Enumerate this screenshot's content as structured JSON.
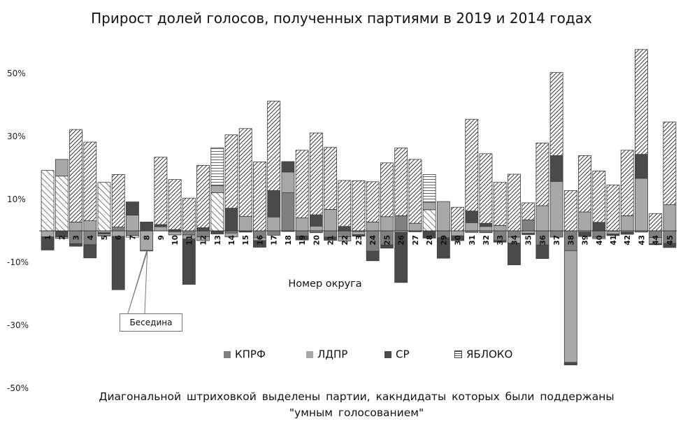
{
  "chart_data": {
    "type": "bar",
    "title": "Прирост долей голосов, полученных партиями в 2019 и 2014 годах",
    "xlabel": "Номер округа",
    "ylabel": "",
    "caption": [
      "Диагональной штриховкой выделены партии, какндидаты которых были поддержаны",
      "\"умным голосованием\""
    ],
    "annotation": "Беседина",
    "annotation_category": "8",
    "ylim": [
      -50,
      60
    ],
    "yticks": [
      50,
      30,
      10,
      -10,
      -30,
      -50
    ],
    "ytick_labels": [
      "50%",
      "30%",
      "10%",
      "-10%",
      "-30%",
      "-50%"
    ],
    "stacked": true,
    "hatched_marks_supported_by_smart_voting": true,
    "categories": [
      "1",
      "2",
      "3",
      "4",
      "5",
      "6",
      "7",
      "8",
      "9",
      "10",
      "11",
      "12",
      "13",
      "14",
      "15",
      "16",
      "17",
      "18",
      "19",
      "20",
      "21",
      "22",
      "23",
      "24",
      "25",
      "26",
      "27",
      "28",
      "29",
      "30",
      "31",
      "32",
      "33",
      "34",
      "35",
      "36",
      "37",
      "38",
      "39",
      "40",
      "41",
      "42",
      "43",
      "44",
      "45"
    ],
    "series": [
      {
        "name": "КПРФ",
        "color": "#808080",
        "values": [
          19.2,
          17.4,
          -4.1,
          -4.4,
          15.4,
          1.2,
          -1.5,
          0,
          0,
          -0.3,
          -1.3,
          -1.9,
          12.1,
          -0.7,
          0,
          -2.2,
          -1.4,
          12.1,
          -1.7,
          -0.6,
          -2.0,
          -1.9,
          -0.2,
          -6.5,
          -4.5,
          4.8,
          0,
          6.7,
          -2.2,
          0,
          -0.5,
          -0.6,
          -3.1,
          -2.0,
          3.5,
          -4.5,
          -2.0,
          -6.3,
          -0.5,
          -2.0,
          -0.1,
          -0.5,
          -0.4,
          -2.1,
          -4.0
        ]
      },
      {
        "name": "ЛДПР",
        "color": "#a8a8a8",
        "values": [
          -1.9,
          5.3,
          2.8,
          3.2,
          -0.6,
          -1.8,
          5.0,
          -6.2,
          1.3,
          -1.0,
          -1.3,
          -1.2,
          2.3,
          -1.2,
          4.6,
          -0.9,
          4.4,
          6.6,
          4.1,
          1.5,
          6.8,
          -1.3,
          -1.0,
          2.8,
          4.5,
          -0.5,
          2.4,
          2.4,
          9.3,
          -1.6,
          2.6,
          1.4,
          1.7,
          -1.9,
          -0.8,
          8.0,
          15.7,
          -35.5,
          6.0,
          -0.5,
          -0.9,
          4.8,
          16.7,
          -2.0,
          8.3
        ]
      },
      {
        "name": "СР",
        "color": "#4a4a4a",
        "values": [
          -3.9,
          -2.0,
          -0.8,
          -4.2,
          -0.5,
          -16.9,
          4.2,
          2.8,
          0.7,
          0.4,
          -14.4,
          1.0,
          -1.0,
          7.2,
          -0.4,
          -2.1,
          8.4,
          3.3,
          -1.2,
          3.6,
          -1.0,
          1.4,
          -0.5,
          -3.0,
          -1.0,
          -15.9,
          -0.3,
          -2.3,
          -6.2,
          -1.5,
          3.7,
          1.0,
          -0.5,
          -6.9,
          -0.4,
          -4.3,
          8.2,
          -0.8,
          -1.3,
          2.7,
          -0.5,
          -0.6,
          7.6,
          -0.3,
          -1.3
        ]
      },
      {
        "name": "ЯБЛОКО",
        "color": "#ffffff",
        "values": [
          -0.3,
          -0.4,
          29.4,
          25.0,
          -0.6,
          16.7,
          -0.5,
          -0.2,
          21.4,
          15.9,
          10.4,
          19.8,
          12.0,
          23.3,
          27.9,
          21.9,
          28.4,
          -0.2,
          21.5,
          26.0,
          19.7,
          14.6,
          15.9,
          12.8,
          17.1,
          21.5,
          20.3,
          8.8,
          -0.3,
          7.5,
          29.1,
          22.1,
          13.7,
          18.0,
          5.4,
          19.9,
          26.4,
          12.8,
          17.9,
          16.3,
          14.6,
          20.8,
          33.3,
          5.5,
          26.3
        ]
      }
    ],
    "hatched": {
      "КПРФ": [
        "1",
        "2",
        "5",
        "13",
        "28"
      ],
      "ЛДПР": [],
      "СР": [],
      "ЯБЛОКО": [
        "3",
        "4",
        "6",
        "9",
        "10",
        "11",
        "12",
        "14",
        "15",
        "16",
        "17",
        "19",
        "20",
        "21",
        "22",
        "23",
        "24",
        "25",
        "26",
        "27",
        "30",
        "31",
        "32",
        "33",
        "34",
        "35",
        "36",
        "37",
        "38",
        "39",
        "40",
        "41",
        "42",
        "43",
        "44",
        "45"
      ]
    },
    "legend": [
      "КПРФ",
      "ЛДПР",
      "СР",
      "ЯБЛОКО"
    ],
    "legend_position": "bottom-center",
    "grid": false
  }
}
